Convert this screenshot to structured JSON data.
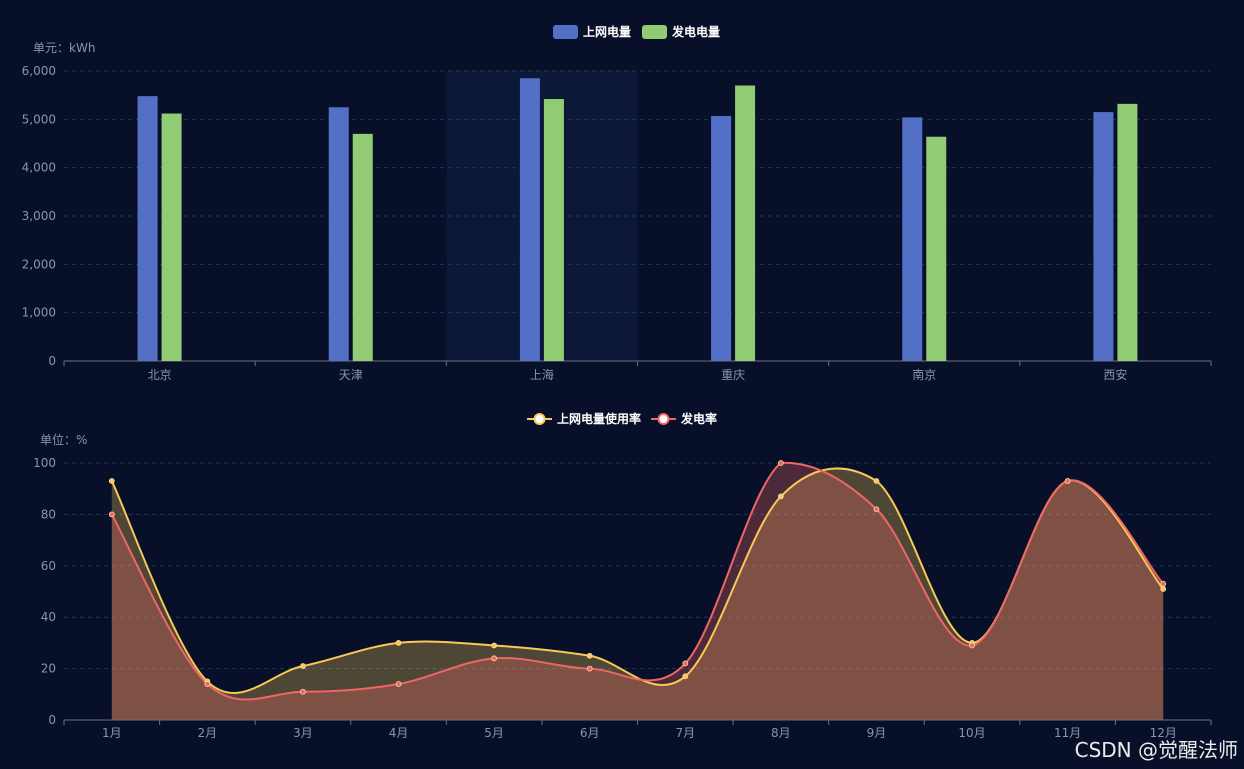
{
  "chart_data": [
    {
      "type": "bar",
      "unit_label": "单元：kWh",
      "categories": [
        "北京",
        "天津",
        "上海",
        "重庆",
        "南京",
        "西安"
      ],
      "series": [
        {
          "name": "上网电量",
          "values": [
            5480,
            5250,
            5850,
            5070,
            5040,
            5150
          ],
          "color": "#5470c6"
        },
        {
          "name": "发电电量",
          "values": [
            5120,
            4700,
            5420,
            5700,
            4640,
            5320
          ],
          "color": "#91cc75"
        }
      ],
      "ylim": [
        0,
        6000
      ],
      "yticks": [
        0,
        1000,
        2000,
        3000,
        4000,
        5000,
        6000
      ],
      "ytick_labels": [
        "0",
        "1,000",
        "2,000",
        "3,000",
        "4,000",
        "5,000",
        "6,000"
      ],
      "highlighted_category": "上海",
      "grid": true,
      "legend_position": "top-center"
    },
    {
      "type": "area",
      "unit_label": "单位：%",
      "categories": [
        "1月",
        "2月",
        "3月",
        "4月",
        "5月",
        "6月",
        "7月",
        "8月",
        "9月",
        "10月",
        "11月",
        "12月"
      ],
      "series": [
        {
          "name": "上网电量使用率",
          "values": [
            93,
            15,
            21,
            30,
            29,
            25,
            17,
            87,
            93,
            30,
            93,
            51
          ],
          "color": "#fac858",
          "fill": "#5a4a2e"
        },
        {
          "name": "发电率",
          "values": [
            80,
            14,
            11,
            14,
            24,
            20,
            22,
            100,
            82,
            29,
            93,
            53
          ],
          "color": "#ee6666",
          "fill": "#5e2538"
        }
      ],
      "ylim": [
        0,
        100
      ],
      "yticks": [
        0,
        20,
        40,
        60,
        80,
        100
      ],
      "ytick_labels": [
        "0",
        "20",
        "40",
        "60",
        "80",
        "100"
      ],
      "smooth": true,
      "grid": true,
      "legend_position": "top-center"
    }
  ],
  "watermark": "CSDN @觉醒法师"
}
